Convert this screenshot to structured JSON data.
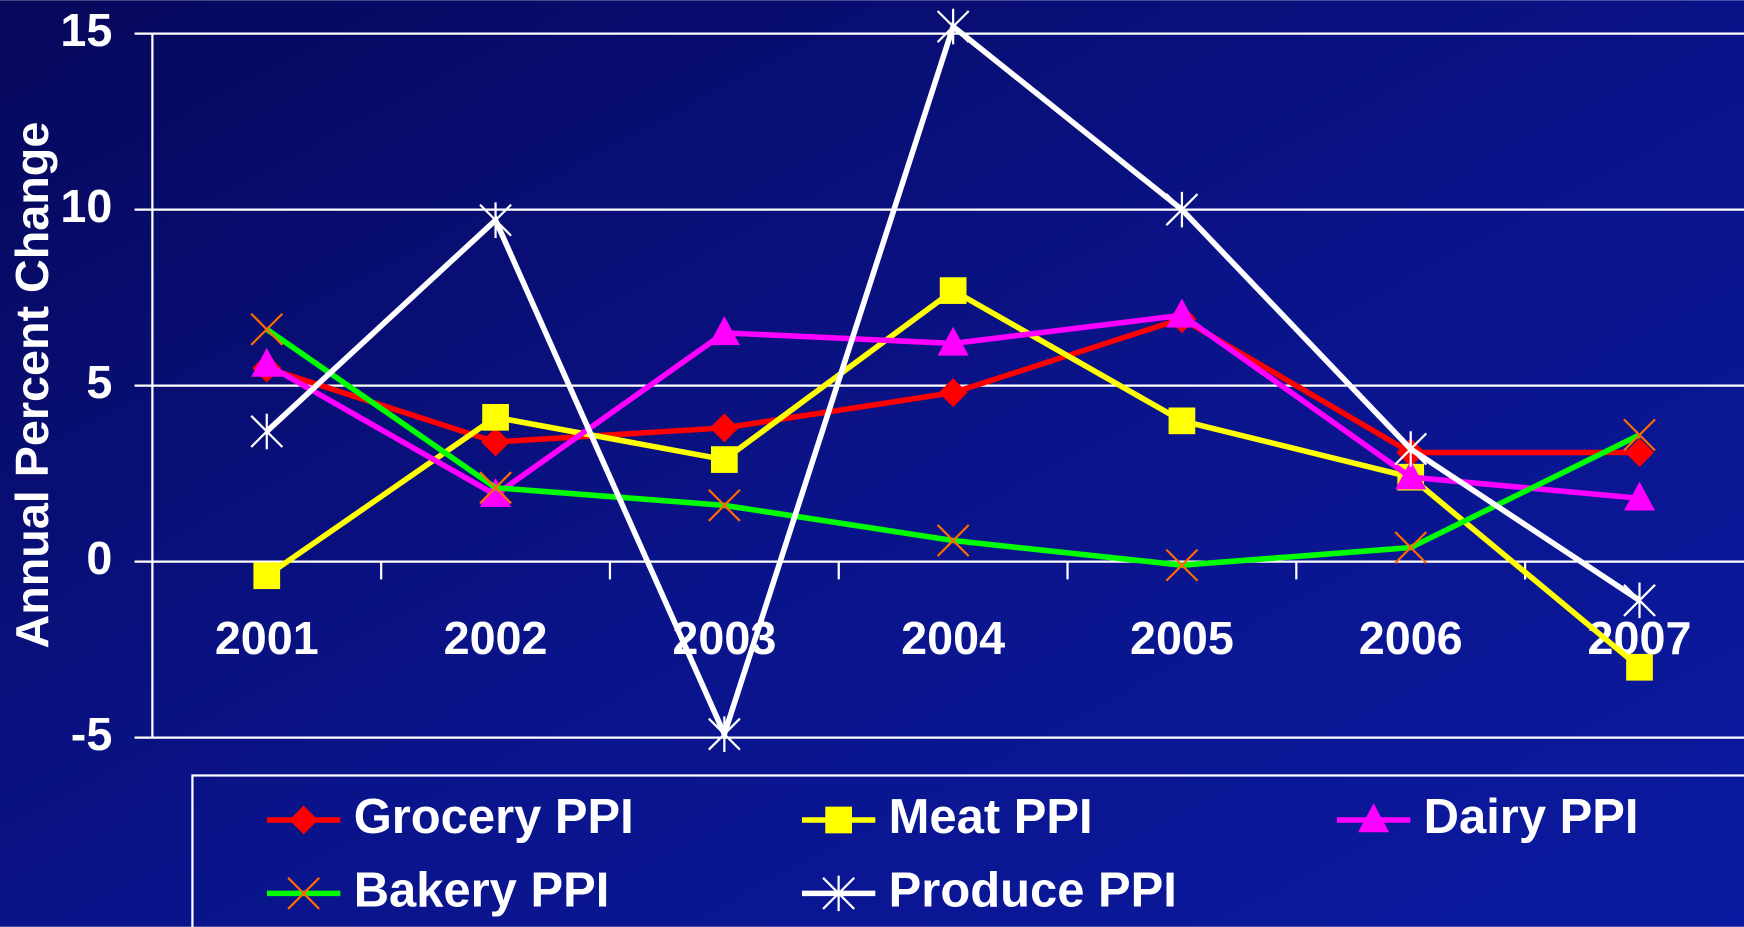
{
  "chart_data": {
    "type": "line",
    "y_label": "Annual Percent Change",
    "categories": [
      "2001",
      "2002",
      "2003",
      "2004",
      "2005",
      "2006",
      "2007"
    ],
    "series": [
      {
        "name": "Grocery PPI",
        "color": "#ff0000",
        "marker": "diamond",
        "values": [
          5.5,
          3.4,
          3.8,
          4.8,
          6.9,
          3.1,
          3.1
        ]
      },
      {
        "name": "Meat PPI",
        "color": "#ffff00",
        "marker": "square",
        "values": [
          -0.4,
          4.1,
          2.9,
          7.7,
          4.0,
          2.4,
          -3.0
        ]
      },
      {
        "name": "Dairy PPI",
        "color": "#ff00ff",
        "marker": "triangle",
        "values": [
          5.6,
          1.9,
          6.5,
          6.2,
          7.0,
          2.4,
          1.8
        ]
      },
      {
        "name": "Bakery PPI",
        "color": "#00ff00",
        "marker": "x",
        "values": [
          6.6,
          2.1,
          1.6,
          0.6,
          -0.1,
          0.4,
          3.6
        ]
      },
      {
        "name": "Produce PPI",
        "color": "#ffffff",
        "marker": "star",
        "values": [
          3.7,
          9.7,
          -4.9,
          15.2,
          10.0,
          3.2,
          -1.1
        ]
      }
    ],
    "ylim": [
      -5,
      15
    ],
    "yticks": [
      -5,
      0,
      5,
      10,
      15
    ],
    "grid": true,
    "legend": "bottom"
  }
}
